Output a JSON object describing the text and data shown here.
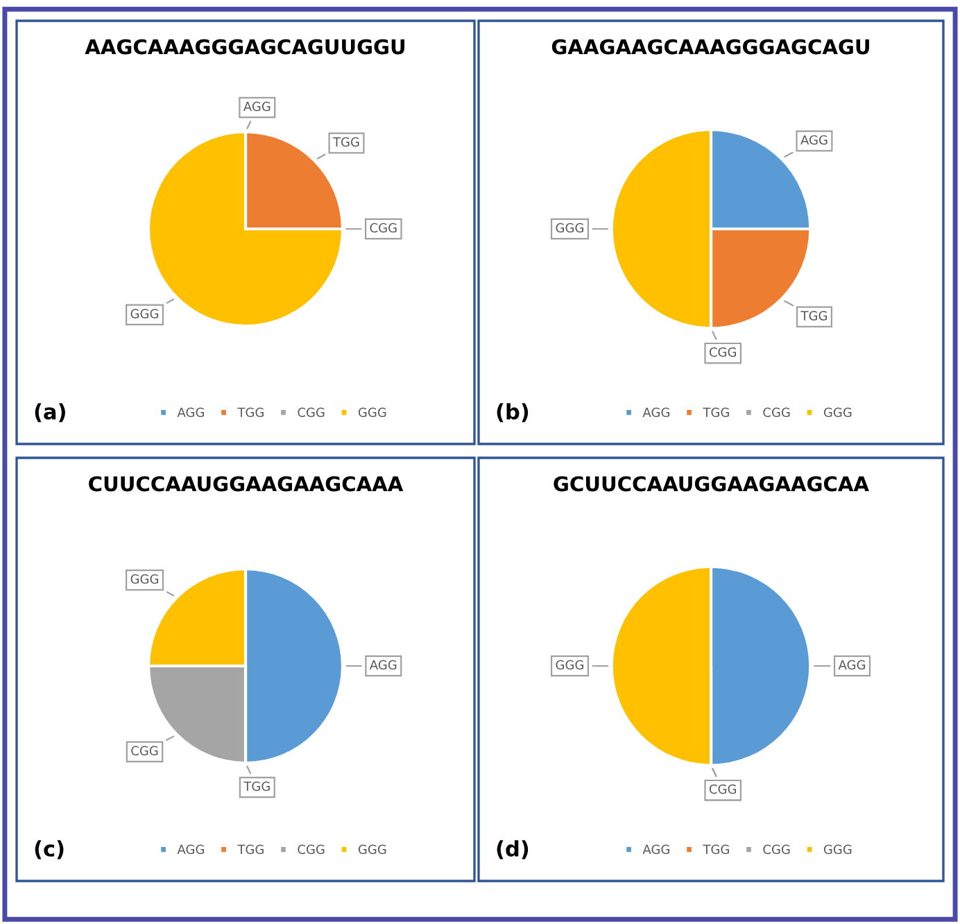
{
  "chart_data": [
    {
      "type": "pie",
      "title": "AAGCAAAGGGAGCAGUUGGU",
      "categories": [
        "AGG",
        "TGG",
        "CGG",
        "GGG"
      ],
      "values": [
        0,
        25,
        0,
        75
      ],
      "colors": [
        "#5b9bd5",
        "#ed7d31",
        "#a5a5a5",
        "#ffc000"
      ],
      "legend": "bottom",
      "annotations": [
        "(a)"
      ]
    },
    {
      "type": "pie",
      "title": "GAAGAAGCAAAGGGAGCAGU",
      "categories": [
        "AGG",
        "TGG",
        "CGG",
        "GGG"
      ],
      "values": [
        25,
        25,
        0,
        50
      ],
      "colors": [
        "#5b9bd5",
        "#ed7d31",
        "#a5a5a5",
        "#ffc000"
      ],
      "legend": "bottom",
      "annotations": [
        "(b)"
      ]
    },
    {
      "type": "pie",
      "title": "CUUCCAAUGGAAGAAGCAAA",
      "categories": [
        "AGG",
        "TGG",
        "CGG",
        "GGG"
      ],
      "values": [
        50,
        0,
        25,
        25
      ],
      "colors": [
        "#5b9bd5",
        "#ed7d31",
        "#a5a5a5",
        "#ffc000"
      ],
      "legend": "bottom",
      "annotations": [
        "(c)"
      ]
    },
    {
      "type": "pie",
      "title": "GCUUCCAAUGGAAGAAGCAA",
      "categories": [
        "AGG",
        "TGG",
        "CGG",
        "GGG"
      ],
      "values": [
        50,
        0,
        0,
        50
      ],
      "colors": [
        "#5b9bd5",
        "#ed7d31",
        "#a5a5a5",
        "#ffc000"
      ],
      "legend": "bottom",
      "annotations": [
        "(d)"
      ]
    }
  ]
}
